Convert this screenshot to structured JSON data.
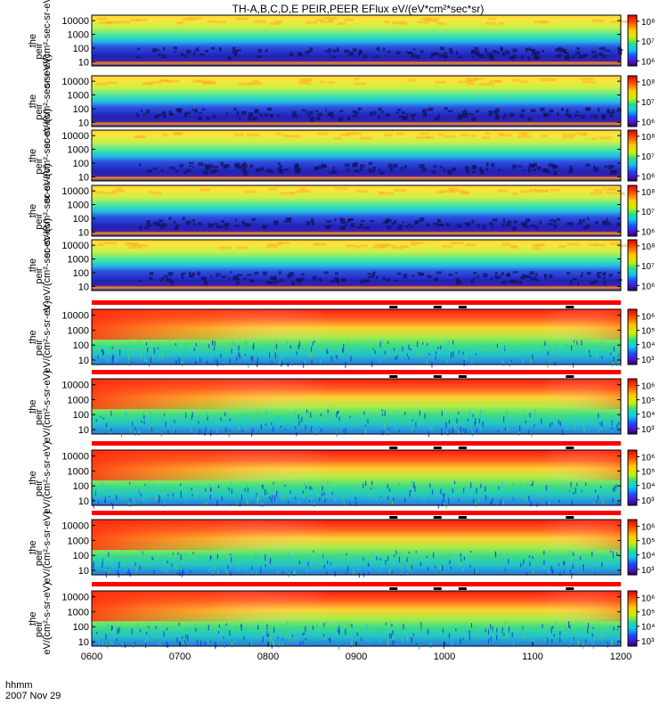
{
  "chart_data": {
    "type": "heatmap",
    "title": "TH-A,B,C,D,E PEIR,PEER EFlux eV/(eV*cm²*sec*sr)",
    "footer": {
      "line1": "hhmm",
      "line2": "2007 Nov 29"
    },
    "x_ticks": [
      "0600",
      "0700",
      "0800",
      "0900",
      "1000",
      "1100",
      "1200"
    ],
    "x_range": [
      "06:00",
      "12:00"
    ],
    "y_ticks": [
      "10000",
      "1000",
      "100",
      "10"
    ],
    "y_scale": "log",
    "marker_times": [
      "09:25",
      "09:55",
      "10:12",
      "11:25"
    ],
    "colors": {
      "bar": "#ff0000",
      "marker": "#000000"
    },
    "ion_panels": [
      {
        "id": "tha_peir",
        "ylabel_main": "the",
        "ylabel_sup": "peir",
        "ylabel_units": "sr-eV/(cm²-sec-sr-eV)",
        "colorbar_ticks": [
          "10⁸",
          "10⁷",
          "10⁶"
        ]
      },
      {
        "id": "thb_peir",
        "ylabel_main": "the",
        "ylabel_sup": "peir",
        "ylabel_units": "sr-eV/(cm²-sec-sr-eV)",
        "colorbar_ticks": [
          "10⁸",
          "10⁷",
          "10⁶"
        ]
      },
      {
        "id": "thc_peir",
        "ylabel_main": "the",
        "ylabel_sup": "peir",
        "ylabel_units": "sr-eV/(cm²-sec-sr-eV)",
        "colorbar_ticks": [
          "10⁸",
          "10⁷",
          "10⁶"
        ]
      },
      {
        "id": "thd_peir",
        "ylabel_main": "the",
        "ylabel_sup": "peir",
        "ylabel_units": "sr-eV/(cm²-sec-sr-eV)",
        "colorbar_ticks": [
          "10⁸",
          "10⁷",
          "10⁶"
        ]
      },
      {
        "id": "the_peir",
        "ylabel_main": "the",
        "ylabel_sup": "peir",
        "ylabel_units": "sr-eV/(cm²-sec-sr-eV)",
        "colorbar_ticks": [
          "10⁸",
          "10⁷",
          "10⁶"
        ]
      }
    ],
    "electron_panels": [
      {
        "id": "tha_peer",
        "ylabel_main": "the",
        "ylabel_sup": "peir",
        "ylabel_units": "eV/(cm²-s-sr-eV)",
        "colorbar_ticks": [
          "10⁶",
          "10⁵",
          "10⁴",
          "10³"
        ]
      },
      {
        "id": "thb_peer",
        "ylabel_main": "the",
        "ylabel_sup": "peir",
        "ylabel_units": "eV/(cm²-s-sr-eV)",
        "colorbar_ticks": [
          "10⁶",
          "10⁵",
          "10⁴",
          "10³"
        ]
      },
      {
        "id": "thc_peer",
        "ylabel_main": "the",
        "ylabel_sup": "peir",
        "ylabel_units": "eV/(cm²-s-sr-eV)",
        "colorbar_ticks": [
          "10⁶",
          "10⁵",
          "10⁴",
          "10³"
        ]
      },
      {
        "id": "thd_peer",
        "ylabel_main": "the",
        "ylabel_sup": "peir",
        "ylabel_units": "eV/(cm²-s-sr-eV)",
        "colorbar_ticks": [
          "10⁶",
          "10⁵",
          "10⁴",
          "10³"
        ]
      },
      {
        "id": "the_peer",
        "ylabel_main": "the",
        "ylabel_sup": "peir",
        "ylabel_units": "eV/(cm²-s-sr-eV)",
        "colorbar_ticks": [
          "10⁶",
          "10⁵",
          "10⁴",
          "10³"
        ]
      }
    ]
  }
}
